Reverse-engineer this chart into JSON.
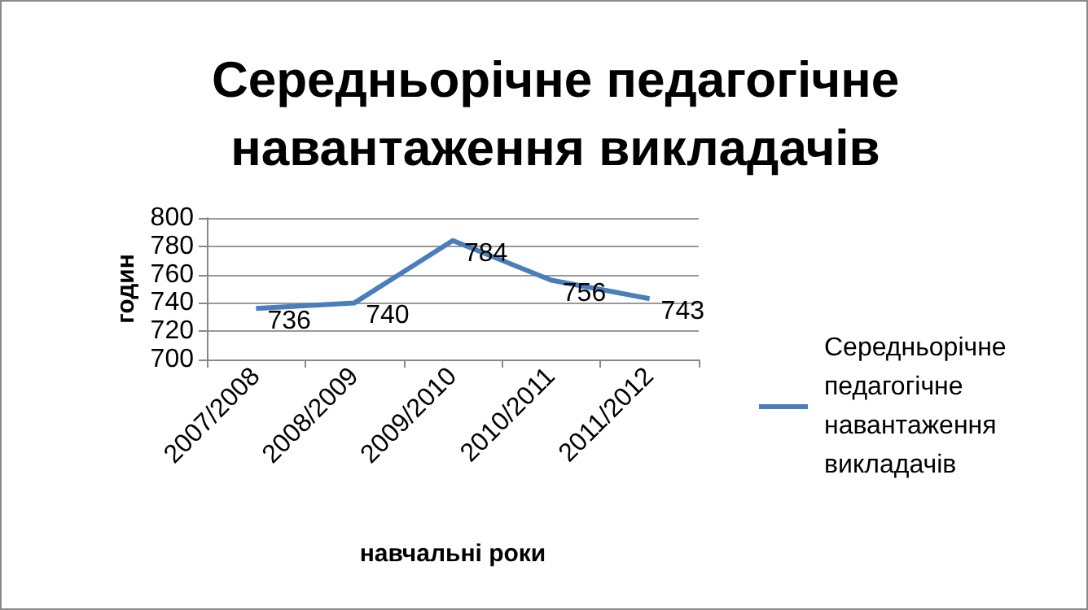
{
  "chart_data": {
    "type": "line",
    "title": "Середньорічне педагогічне навантаження викладачів",
    "xlabel": "навчальні роки",
    "ylabel": "годин",
    "categories": [
      "2007/2008",
      "2008/2009",
      "2009/2010",
      "2010/2011",
      "2011/2012"
    ],
    "series": [
      {
        "name": "Середньорічне педагогічне навантаження викладачів",
        "color": "#4a7ebb",
        "values": [
          736,
          740,
          784,
          756,
          743
        ]
      }
    ],
    "ylim": [
      700,
      800
    ],
    "yticks": [
      700,
      720,
      740,
      760,
      780,
      800
    ],
    "grid": "y",
    "legend": "right",
    "marker": "none",
    "line_style": "solid",
    "data_labels": true
  }
}
